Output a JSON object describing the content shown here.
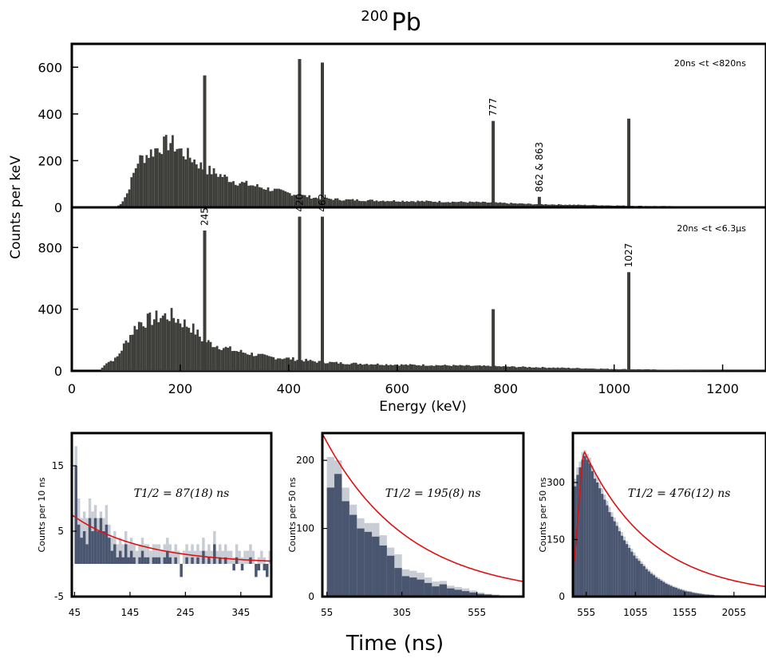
{
  "figure": {
    "title_sup": "200",
    "title_main": "Pb",
    "xlabel_bottom": "Time (ns)"
  },
  "colors": {
    "spectrum": "#3d3d3a",
    "decay_dark": "#4a5570",
    "decay_light": "#c8ccd4",
    "fit": "#dd1111"
  },
  "chart_data": [
    {
      "id": "spectrum-top",
      "type": "bar",
      "annotation": "20ns <t <820ns",
      "ylabel": "Counts per keV",
      "xlim": [
        0,
        1280
      ],
      "ylim": [
        0,
        700
      ],
      "yticks": [
        0,
        200,
        400,
        600
      ],
      "continuum": {
        "x": [
          80,
          90,
          100,
          120,
          140,
          160,
          180,
          200,
          220,
          240,
          260,
          280,
          300,
          320,
          350,
          380,
          400,
          450,
          500,
          550,
          600,
          650,
          700,
          750,
          800,
          850,
          900,
          950,
          1000,
          1050,
          1100,
          1150,
          1200,
          1280
        ],
        "y": [
          0,
          20,
          60,
          200,
          230,
          260,
          280,
          240,
          210,
          170,
          150,
          130,
          110,
          100,
          85,
          70,
          60,
          40,
          33,
          30,
          28,
          26,
          24,
          22,
          18,
          14,
          12,
          10,
          8,
          6,
          5,
          3,
          2,
          1
        ]
      },
      "peaks": [
        {
          "energy": 245,
          "height": 565
        },
        {
          "energy": 420,
          "height": 635
        },
        {
          "energy": 462,
          "height": 620
        },
        {
          "energy": 777,
          "height": 370,
          "label": "777"
        },
        {
          "energy": 862,
          "height": 45,
          "label": "862 & 863"
        },
        {
          "energy": 1027,
          "height": 380
        }
      ]
    },
    {
      "id": "spectrum-bottom",
      "type": "bar",
      "annotation": "20ns <t <6.3μs",
      "xlabel": "Energy (keV)",
      "xlim": [
        0,
        1280
      ],
      "ylim": [
        0,
        1060
      ],
      "yticks": [
        0,
        400,
        800
      ],
      "xticks": [
        0,
        200,
        400,
        600,
        800,
        1000,
        1200
      ],
      "continuum": {
        "x": [
          50,
          60,
          80,
          100,
          120,
          140,
          160,
          180,
          200,
          220,
          240,
          260,
          280,
          300,
          330,
          360,
          400,
          450,
          500,
          550,
          600,
          650,
          700,
          750,
          800,
          850,
          900,
          950,
          1000,
          1050,
          1100,
          1150,
          1200,
          1280
        ],
        "y": [
          0,
          50,
          80,
          200,
          310,
          330,
          350,
          360,
          320,
          280,
          200,
          170,
          150,
          130,
          110,
          90,
          80,
          60,
          50,
          45,
          40,
          38,
          35,
          32,
          28,
          24,
          20,
          16,
          12,
          10,
          7,
          5,
          3,
          2
        ]
      },
      "peaks": [
        {
          "energy": 245,
          "height": 910,
          "label": "245"
        },
        {
          "energy": 420,
          "height": 1000,
          "label": "420"
        },
        {
          "energy": 462,
          "height": 1000,
          "label": "462"
        },
        {
          "energy": 777,
          "height": 400
        },
        {
          "energy": 1027,
          "height": 640,
          "label": "1027"
        }
      ]
    },
    {
      "id": "decay-1",
      "type": "bar",
      "annotation": "T1/2 = 87(18) ns",
      "ylabel": "Counts per 10 ns",
      "xlim": [
        40,
        400
      ],
      "ylim": [
        -5,
        20
      ],
      "yticks": [
        -5,
        5,
        15
      ],
      "xticks": [
        45,
        145,
        245,
        345
      ],
      "bin_width": 5,
      "bins_x0": 45,
      "dark": [
        15,
        6,
        4,
        5,
        3,
        7,
        5,
        7,
        5,
        7,
        5,
        6,
        4,
        2,
        3,
        1,
        2,
        1,
        3,
        1,
        2,
        1,
        0,
        1,
        2,
        1,
        1,
        0,
        1,
        1,
        1,
        0,
        1,
        2,
        1,
        0,
        1,
        0,
        -2,
        0,
        1,
        0,
        1,
        0,
        1,
        0,
        2,
        0,
        1,
        0,
        3,
        0,
        1,
        0,
        1,
        0,
        0,
        -1,
        1,
        0,
        -1,
        0,
        0,
        1,
        0,
        -2,
        -1,
        0,
        -1,
        -2,
        0,
        1
      ],
      "light": [
        18,
        10,
        7,
        8,
        7,
        10,
        8,
        9,
        7,
        8,
        7,
        9,
        6,
        4,
        5,
        3,
        4,
        3,
        5,
        3,
        4,
        3,
        2,
        3,
        4,
        3,
        3,
        2,
        3,
        3,
        3,
        2,
        3,
        4,
        3,
        2,
        3,
        2,
        0,
        2,
        3,
        2,
        3,
        2,
        3,
        2,
        4,
        2,
        3,
        2,
        5,
        2,
        3,
        2,
        3,
        2,
        2,
        1,
        3,
        2,
        1,
        2,
        2,
        3,
        2,
        0,
        1,
        2,
        1,
        0,
        2,
        3
      ],
      "fit": {
        "amplitude": 7.2,
        "half_life": 87,
        "t0": 45,
        "offset": 0
      }
    },
    {
      "id": "decay-2",
      "type": "bar",
      "annotation": "T1/2 = 195(8) ns",
      "ylabel": "Counts per 50 ns",
      "xlim": [
        40,
        710
      ],
      "ylim": [
        0,
        240
      ],
      "yticks": [
        0,
        100,
        200
      ],
      "xticks": [
        55,
        305,
        555
      ],
      "bin_width": 25,
      "bins_x0": 55,
      "dark": [
        160,
        180,
        140,
        120,
        100,
        95,
        88,
        75,
        60,
        42,
        30,
        28,
        25,
        20,
        15,
        18,
        12,
        10,
        8,
        6,
        4,
        3,
        2
      ],
      "light": [
        205,
        200,
        160,
        135,
        115,
        108,
        108,
        90,
        72,
        62,
        40,
        38,
        35,
        28,
        22,
        23,
        16,
        14,
        12,
        9,
        6,
        4,
        3
      ],
      "fit": {
        "amplitude": 235,
        "half_life": 195,
        "t0": 45,
        "offset": 0
      }
    },
    {
      "id": "decay-3",
      "type": "bar",
      "annotation": "T1/2 = 476(12) ns",
      "ylabel": "Counts per 50 ns",
      "xlim": [
        420,
        2380
      ],
      "ylim": [
        0,
        430
      ],
      "yticks": [
        0,
        150,
        300
      ],
      "xticks": [
        555,
        1055,
        1555,
        2055
      ],
      "bin_width": 25,
      "bins_x0": 430,
      "dark": [
        290,
        320,
        340,
        360,
        370,
        360,
        350,
        330,
        310,
        300,
        285,
        270,
        255,
        240,
        222,
        210,
        198,
        186,
        172,
        160,
        148,
        138,
        128,
        118,
        108,
        100,
        94,
        86,
        80,
        72,
        66,
        60,
        56,
        50,
        46,
        42,
        38,
        34,
        31,
        28,
        25,
        23,
        20,
        18,
        16,
        14,
        13,
        12,
        10,
        9,
        8,
        7,
        6,
        5,
        5,
        4,
        4,
        3,
        3,
        2,
        2,
        2,
        1,
        1,
        1,
        1,
        1,
        1,
        0,
        0,
        0,
        0,
        0,
        0,
        0,
        0,
        0,
        0
      ],
      "light": [
        310,
        340,
        355,
        380,
        385,
        375,
        365,
        345,
        325,
        315,
        300,
        285,
        268,
        252,
        236,
        222,
        208,
        196,
        182,
        170,
        158,
        146,
        136,
        126,
        116,
        107,
        100,
        92,
        85,
        77,
        71,
        65,
        60,
        54,
        50,
        46,
        42,
        37,
        34,
        31,
        28,
        26,
        23,
        21,
        19,
        17,
        15,
        14,
        12,
        11,
        10,
        9,
        8,
        7,
        6,
        6,
        5,
        4,
        4,
        3,
        3,
        3,
        2,
        2,
        2,
        2,
        2,
        1,
        1,
        1,
        1,
        1,
        1,
        1,
        1,
        1,
        1,
        1
      ],
      "fit": {
        "amplitude": 380,
        "half_life": 476,
        "t0": 540,
        "offset": 0,
        "rise": true
      }
    }
  ]
}
